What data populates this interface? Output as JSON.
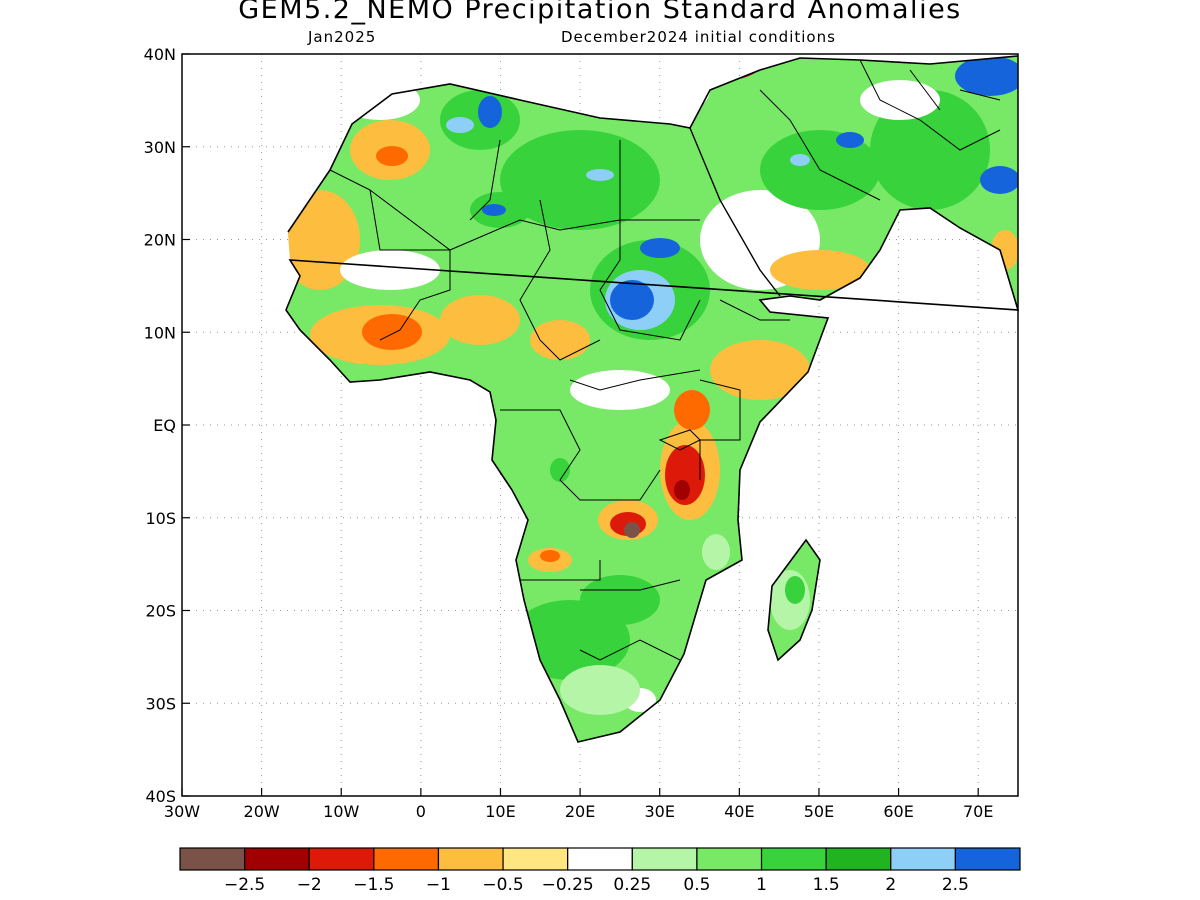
{
  "title": "GEM5.2_NEMO Precipitation Standard Anomalies",
  "subtitle_left": "Jan2025",
  "subtitle_right": "December2024 initial conditions",
  "map": {
    "lon_range": [
      -30,
      75
    ],
    "lat_range": [
      -40,
      40
    ],
    "lat_labels": [
      "40N",
      "30N",
      "20N",
      "10N",
      "EQ",
      "10S",
      "20S",
      "30S",
      "40S"
    ],
    "lon_labels": [
      "30W",
      "20W",
      "10W",
      "0",
      "10E",
      "20E",
      "30E",
      "40E",
      "50E",
      "60E",
      "70E"
    ],
    "grid": "dotted"
  },
  "colorbar": {
    "colors": [
      "#7a5248",
      "#a00000",
      "#dd1a0a",
      "#ff6a00",
      "#fdbd3f",
      "#ffe680",
      "#ffffff",
      "#b4f5a8",
      "#78e966",
      "#37d23c",
      "#1fb420",
      "#8ecff7",
      "#1664dc"
    ],
    "labels": [
      "-2.5",
      "-2",
      "-1.5",
      "-1",
      "-0.5",
      "-0.25",
      "0.25",
      "0.5",
      "1",
      "1.5",
      "2",
      "2.5"
    ]
  }
}
